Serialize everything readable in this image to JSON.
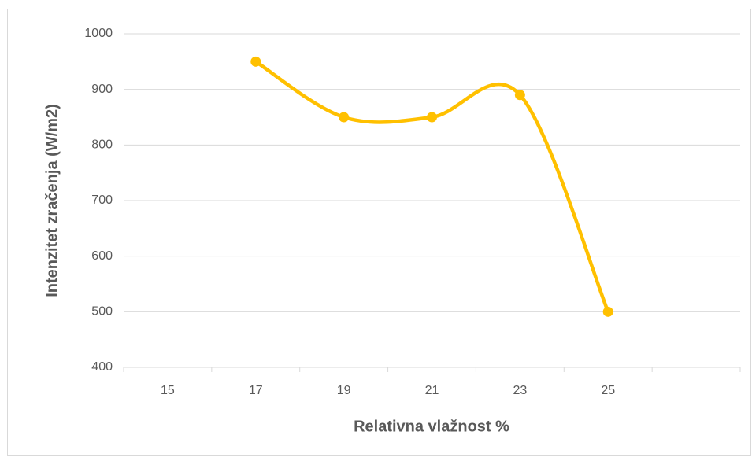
{
  "chart_data": {
    "type": "line",
    "x_label": "Relativna vlažnost %",
    "y_label": "Intenzitet  zračenja (W/m2)",
    "categories": [
      "15",
      "17",
      "19",
      "21",
      "23",
      "25",
      null
    ],
    "values": [
      null,
      950,
      850,
      850,
      890,
      500,
      null
    ],
    "color": "#ffc000",
    "smooth": true,
    "ylim": [
      400,
      1000
    ],
    "yticks": [
      400,
      500,
      600,
      700,
      800,
      900,
      1000
    ],
    "grid": true
  }
}
